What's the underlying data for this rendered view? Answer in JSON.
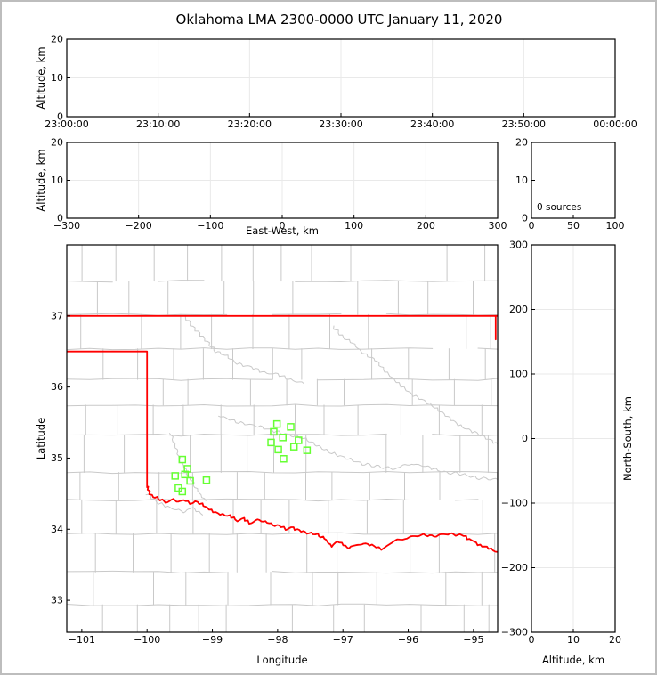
{
  "title": "Oklahoma LMA 2300-0000 UTC January 11, 2020",
  "colors": {
    "station_green": "#66ff33",
    "state_border_red": "#ff0000",
    "county_gray": "#c9c9c9",
    "grid_gray": "#e9e9e9",
    "axis_black": "#000000",
    "figure_border_gray": "#bdbdbd"
  },
  "panels": {
    "time_height": {
      "ylabel": "Altitude, km",
      "xlim": [
        0,
        3600
      ],
      "ylim": [
        0,
        20
      ],
      "xticks": [
        {
          "v": 0,
          "label": "23:00:00"
        },
        {
          "v": 600,
          "label": "23:10:00"
        },
        {
          "v": 1200,
          "label": "23:20:00"
        },
        {
          "v": 1800,
          "label": "23:30:00"
        },
        {
          "v": 2400,
          "label": "23:40:00"
        },
        {
          "v": 3000,
          "label": "23:50:00"
        },
        {
          "v": 3600,
          "label": "00:00:00"
        }
      ],
      "yticks": [
        {
          "v": 0,
          "label": "0"
        },
        {
          "v": 10,
          "label": "10"
        },
        {
          "v": 20,
          "label": "20"
        }
      ],
      "gridx": [
        600,
        1200,
        1800,
        2400,
        3000
      ],
      "gridy": [
        10
      ]
    },
    "ew_height": {
      "xlabel": "East-West, km",
      "xlabel_offset": 9,
      "ylabel": "Altitude, km",
      "xlim": [
        -300,
        300
      ],
      "ylim": [
        0,
        20
      ],
      "xticks": [
        {
          "v": -300,
          "label": "−300"
        },
        {
          "v": -200,
          "label": "−200"
        },
        {
          "v": -100,
          "label": "−100"
        },
        {
          "v": 0,
          "label": "0"
        },
        {
          "v": 100,
          "label": "100"
        },
        {
          "v": 200,
          "label": "200"
        },
        {
          "v": 300,
          "label": "300"
        }
      ],
      "yticks": [
        {
          "v": 0,
          "label": "0"
        },
        {
          "v": 10,
          "label": "10"
        },
        {
          "v": 20,
          "label": "20"
        }
      ],
      "gridx": [
        -200,
        -100,
        0,
        100,
        200
      ],
      "gridy": [
        10
      ]
    },
    "alt_histogram": {
      "xlim": [
        0,
        100
      ],
      "ylim": [
        0,
        20
      ],
      "xticks": [
        {
          "v": 0,
          "label": "0"
        },
        {
          "v": 50,
          "label": "50"
        },
        {
          "v": 100,
          "label": "100"
        }
      ],
      "yticks": [
        {
          "v": 0,
          "label": "0"
        },
        {
          "v": 10,
          "label": "10"
        },
        {
          "v": 20,
          "label": "20"
        }
      ],
      "annotation": "0 sources"
    },
    "plan_view": {
      "xlabel": "Longitude",
      "xlabel_offset": 26,
      "ylabel": "Latitude",
      "xlim": [
        -101.23,
        -94.63
      ],
      "ylim": [
        32.55,
        38.0
      ],
      "xticks": [
        {
          "v": -101,
          "label": "−101"
        },
        {
          "v": -100,
          "label": "−100"
        },
        {
          "v": -99,
          "label": "−99"
        },
        {
          "v": -98,
          "label": "−98"
        },
        {
          "v": -97,
          "label": "−97"
        },
        {
          "v": -96,
          "label": "−96"
        },
        {
          "v": -95,
          "label": "−95"
        }
      ],
      "yticks": [
        {
          "v": 33,
          "label": "33"
        },
        {
          "v": 34,
          "label": "34"
        },
        {
          "v": 35,
          "label": "35"
        },
        {
          "v": 36,
          "label": "36"
        },
        {
          "v": 37,
          "label": "37"
        }
      ]
    },
    "ns_altitude": {
      "xlabel": "Altitude, km",
      "xlabel_offset": 26,
      "ylabel": "North-South, km",
      "ylabel_side": "right",
      "xlim": [
        0,
        20
      ],
      "ylim": [
        -300,
        300
      ],
      "xticks": [
        {
          "v": 0,
          "label": "0"
        },
        {
          "v": 10,
          "label": "10"
        },
        {
          "v": 20,
          "label": "20"
        }
      ],
      "yticks": [
        {
          "v": 300,
          "label": "300"
        },
        {
          "v": 200,
          "label": "200"
        },
        {
          "v": 100,
          "label": "100"
        },
        {
          "v": 0,
          "label": "0"
        },
        {
          "v": -100,
          "label": "−100"
        },
        {
          "v": -200,
          "label": "−200"
        },
        {
          "v": -300,
          "label": "−300"
        }
      ],
      "gridx": [
        10
      ],
      "gridy": [
        -200,
        -100,
        0,
        100,
        200
      ]
    }
  },
  "chart_data": [
    {
      "type": "scatter",
      "panel": "time_height",
      "title": "Oklahoma LMA 2300-0000 UTC January 11, 2020",
      "xlabel_ticks": [
        "23:00:00",
        "23:10:00",
        "23:20:00",
        "23:30:00",
        "23:40:00",
        "23:50:00",
        "00:00:00"
      ],
      "ylabel": "Altitude, km",
      "ylim": [
        0,
        20
      ],
      "points": []
    },
    {
      "type": "scatter",
      "panel": "ew_height",
      "xlabel": "East-West, km",
      "xlim": [
        -300,
        300
      ],
      "ylabel": "Altitude, km",
      "ylim": [
        0,
        20
      ],
      "points": []
    },
    {
      "type": "histogram",
      "panel": "alt_histogram",
      "xlim": [
        0,
        100
      ],
      "ylim": [
        0,
        20
      ],
      "annotation": "0 sources",
      "points": []
    },
    {
      "type": "scatter",
      "panel": "plan_view",
      "xlabel": "Longitude",
      "xlim": [
        -101.23,
        -94.63
      ],
      "ylabel": "Latitude",
      "ylim": [
        32.55,
        38.0
      ],
      "series": [
        {
          "name": "lma_station_markers",
          "marker": "open_square",
          "color": "#66ff33",
          "points": [
            [
              -98.01,
              35.48
            ],
            [
              -97.8,
              35.44
            ],
            [
              -98.06,
              35.37
            ],
            [
              -97.92,
              35.29
            ],
            [
              -97.68,
              35.25
            ],
            [
              -98.1,
              35.22
            ],
            [
              -97.75,
              35.16
            ],
            [
              -97.99,
              35.12
            ],
            [
              -97.55,
              35.11
            ],
            [
              -97.91,
              34.99
            ],
            [
              -99.46,
              34.98
            ],
            [
              -99.38,
              34.85
            ],
            [
              -99.57,
              34.75
            ],
            [
              -99.42,
              34.77
            ],
            [
              -99.34,
              34.68
            ],
            [
              -99.09,
              34.69
            ],
            [
              -99.52,
              34.58
            ],
            [
              -99.46,
              34.53
            ]
          ]
        }
      ],
      "overlays": {
        "state_border": {
          "color": "#ff0000",
          "north_line": [
            [
              -101.23,
              37.0
            ],
            [
              -94.63,
              37.0
            ]
          ],
          "panhandle_west": [
            [
              -101.23,
              36.5
            ],
            [
              -100.0,
              36.5
            ],
            [
              -100.0,
              34.59
            ]
          ],
          "east_segment": [
            [
              -94.66,
              37.0
            ],
            [
              -94.66,
              36.67
            ]
          ],
          "red_river": [
            [
              -100.0,
              34.59
            ],
            [
              -99.93,
              34.47
            ],
            [
              -99.85,
              34.44
            ],
            [
              -99.77,
              34.4
            ],
            [
              -99.68,
              34.38
            ],
            [
              -99.6,
              34.42
            ],
            [
              -99.52,
              34.38
            ],
            [
              -99.44,
              34.41
            ],
            [
              -99.35,
              34.37
            ],
            [
              -99.26,
              34.4
            ],
            [
              -99.16,
              34.35
            ],
            [
              -99.05,
              34.28
            ],
            [
              -98.95,
              34.24
            ],
            [
              -98.84,
              34.21
            ],
            [
              -98.73,
              34.19
            ],
            [
              -98.62,
              34.12
            ],
            [
              -98.52,
              34.15
            ],
            [
              -98.44,
              34.09
            ],
            [
              -98.34,
              34.12
            ],
            [
              -98.22,
              34.12
            ],
            [
              -98.1,
              34.07
            ],
            [
              -97.98,
              34.05
            ],
            [
              -97.88,
              34.0
            ],
            [
              -97.76,
              34.02
            ],
            [
              -97.64,
              33.97
            ],
            [
              -97.52,
              33.95
            ],
            [
              -97.39,
              33.92
            ],
            [
              -97.28,
              33.87
            ],
            [
              -97.18,
              33.76
            ],
            [
              -97.09,
              33.83
            ],
            [
              -96.99,
              33.78
            ],
            [
              -96.91,
              33.73
            ],
            [
              -96.8,
              33.77
            ],
            [
              -96.68,
              33.81
            ],
            [
              -96.56,
              33.77
            ],
            [
              -96.42,
              33.72
            ],
            [
              -96.28,
              33.8
            ],
            [
              -96.16,
              33.84
            ],
            [
              -96.05,
              33.87
            ],
            [
              -95.93,
              33.89
            ],
            [
              -95.8,
              33.92
            ],
            [
              -95.67,
              33.9
            ],
            [
              -95.54,
              33.9
            ],
            [
              -95.42,
              33.93
            ],
            [
              -95.3,
              33.93
            ],
            [
              -95.18,
              33.92
            ],
            [
              -95.06,
              33.86
            ],
            [
              -94.93,
              33.79
            ],
            [
              -94.8,
              33.74
            ],
            [
              -94.63,
              33.68
            ]
          ]
        },
        "rivers": {
          "color": "#c9c9c9",
          "paths": [
            [
              [
                -99.43,
                37.0
              ],
              [
                -99.3,
                36.85
              ],
              [
                -99.1,
                36.66
              ],
              [
                -98.95,
                36.5
              ],
              [
                -98.8,
                36.45
              ],
              [
                -98.62,
                36.33
              ],
              [
                -98.4,
                36.28
              ],
              [
                -98.2,
                36.2
              ],
              [
                -98.0,
                36.18
              ],
              [
                -97.8,
                36.1
              ],
              [
                -97.6,
                36.05
              ]
            ],
            [
              [
                -97.15,
                36.85
              ],
              [
                -97.0,
                36.7
              ],
              [
                -96.85,
                36.62
              ],
              [
                -96.7,
                36.48
              ],
              [
                -96.5,
                36.38
              ],
              [
                -96.35,
                36.22
              ],
              [
                -96.15,
                36.05
              ],
              [
                -95.95,
                35.9
              ],
              [
                -95.7,
                35.78
              ],
              [
                -95.45,
                35.62
              ],
              [
                -95.2,
                35.45
              ],
              [
                -94.95,
                35.35
              ],
              [
                -94.63,
                35.2
              ]
            ],
            [
              [
                -98.9,
                35.6
              ],
              [
                -98.6,
                35.5
              ],
              [
                -98.3,
                35.45
              ],
              [
                -98.05,
                35.38
              ],
              [
                -97.85,
                35.33
              ],
              [
                -97.6,
                35.28
              ],
              [
                -97.4,
                35.18
              ],
              [
                -97.2,
                35.08
              ],
              [
                -96.95,
                35.0
              ],
              [
                -96.7,
                34.92
              ],
              [
                -96.45,
                34.88
              ],
              [
                -96.2,
                34.85
              ],
              [
                -95.95,
                34.92
              ],
              [
                -95.7,
                34.88
              ],
              [
                -95.45,
                34.8
              ],
              [
                -95.2,
                34.78
              ],
              [
                -94.95,
                34.72
              ],
              [
                -94.63,
                34.7
              ]
            ],
            [
              [
                -99.65,
                35.35
              ],
              [
                -99.55,
                35.15
              ],
              [
                -99.48,
                34.95
              ],
              [
                -99.38,
                34.78
              ],
              [
                -99.28,
                34.62
              ],
              [
                -99.18,
                34.48
              ],
              [
                -99.1,
                34.4
              ]
            ],
            [
              [
                -100.0,
                34.5
              ],
              [
                -99.85,
                34.38
              ],
              [
                -99.65,
                34.3
              ],
              [
                -99.45,
                34.25
              ],
              [
                -99.3,
                34.3
              ],
              [
                -99.15,
                34.2
              ]
            ]
          ]
        },
        "county_lines": {
          "color": "#c9c9c9",
          "style": "irregular grid"
        }
      }
    },
    {
      "type": "scatter",
      "panel": "ns_altitude",
      "xlabel": "Altitude, km",
      "xlim": [
        0,
        20
      ],
      "ylabel": "North-South, km",
      "ylim": [
        -300,
        300
      ],
      "points": []
    }
  ]
}
